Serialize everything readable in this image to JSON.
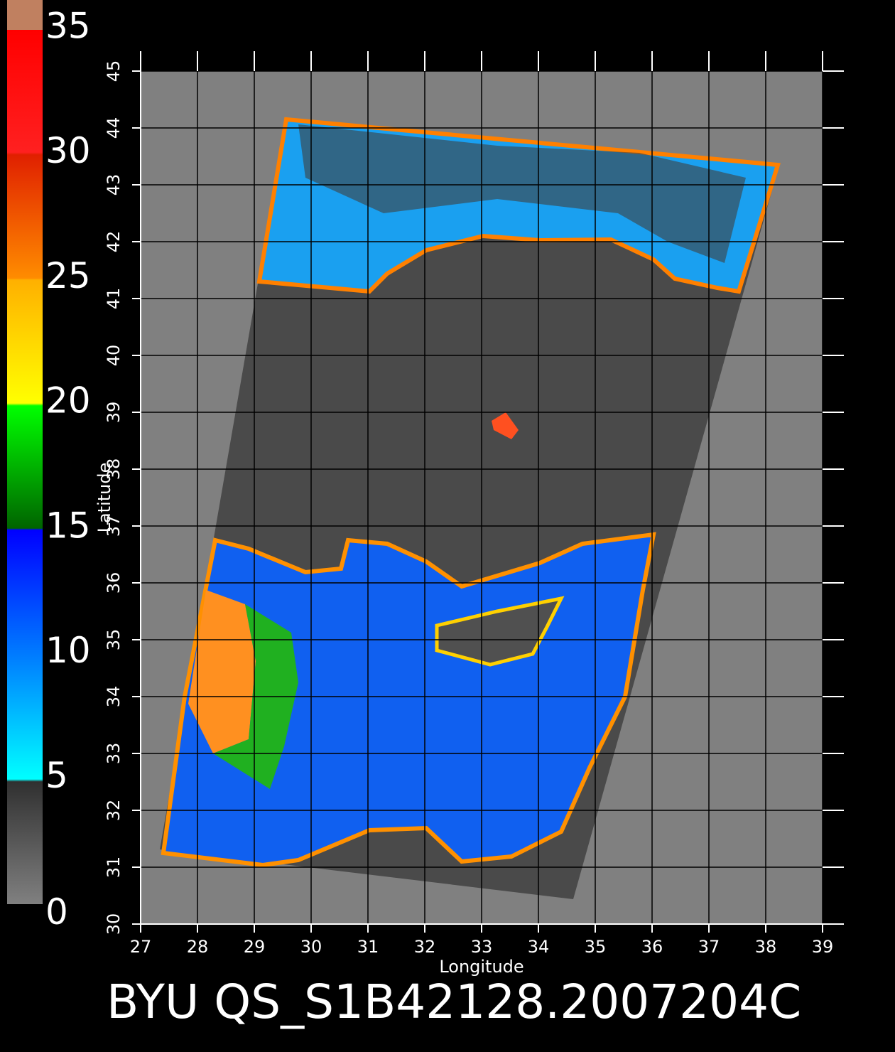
{
  "colorbar": {
    "ticks": [
      0,
      5,
      10,
      15,
      20,
      25,
      30,
      35
    ],
    "lim": [
      0,
      35
    ]
  },
  "map": {
    "xlabel": "Longitude",
    "ylabel": "Latitude",
    "xlim": [
      27,
      39
    ],
    "ylim": [
      30,
      45
    ],
    "xticks": [
      27,
      28,
      29,
      30,
      31,
      32,
      33,
      34,
      35,
      36,
      37,
      38,
      39
    ],
    "yticks": [
      30,
      31,
      32,
      33,
      34,
      35,
      36,
      37,
      38,
      39,
      40,
      41,
      42,
      43,
      44,
      45
    ]
  },
  "caption": "BYU QS_S1B42128.2007204C"
}
